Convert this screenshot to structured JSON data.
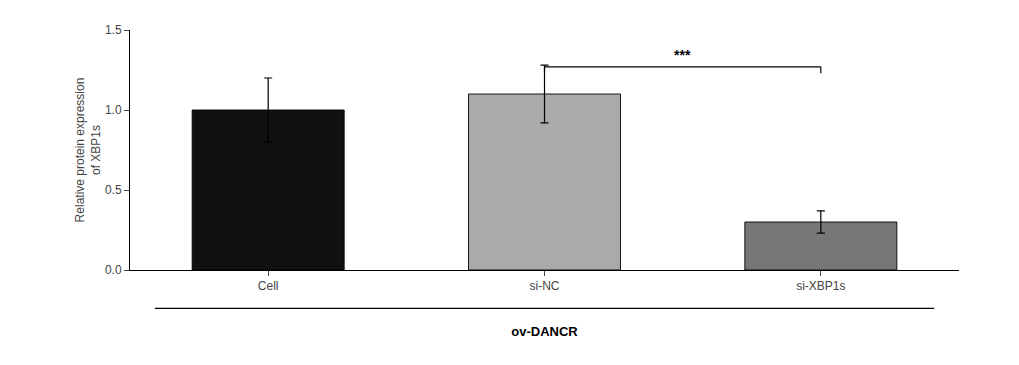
{
  "chart_data": {
    "type": "bar",
    "categories": [
      "Cell",
      "si-NC",
      "si-XBP1s"
    ],
    "values": [
      1.0,
      1.1,
      0.3
    ],
    "errors": [
      0.2,
      0.18,
      0.07
    ],
    "colors": [
      "#111111",
      "#aaaaaa",
      "#777777"
    ],
    "ylabel": "Relative protein expression\nof XBP1s",
    "xlabel": "ov-DANCR",
    "ylim": [
      0,
      1.5
    ],
    "yticks": [
      {
        "value": 0.0,
        "label": "0.0"
      },
      0.5,
      {
        "value": 1.0,
        "label": "1.0"
      },
      1.5
    ],
    "grid": false,
    "annotations": [
      {
        "text": "***",
        "x_from": "si-NC",
        "x_to": "si-XBP1s",
        "y": 1.27,
        "text_y": 1.28
      }
    ]
  }
}
